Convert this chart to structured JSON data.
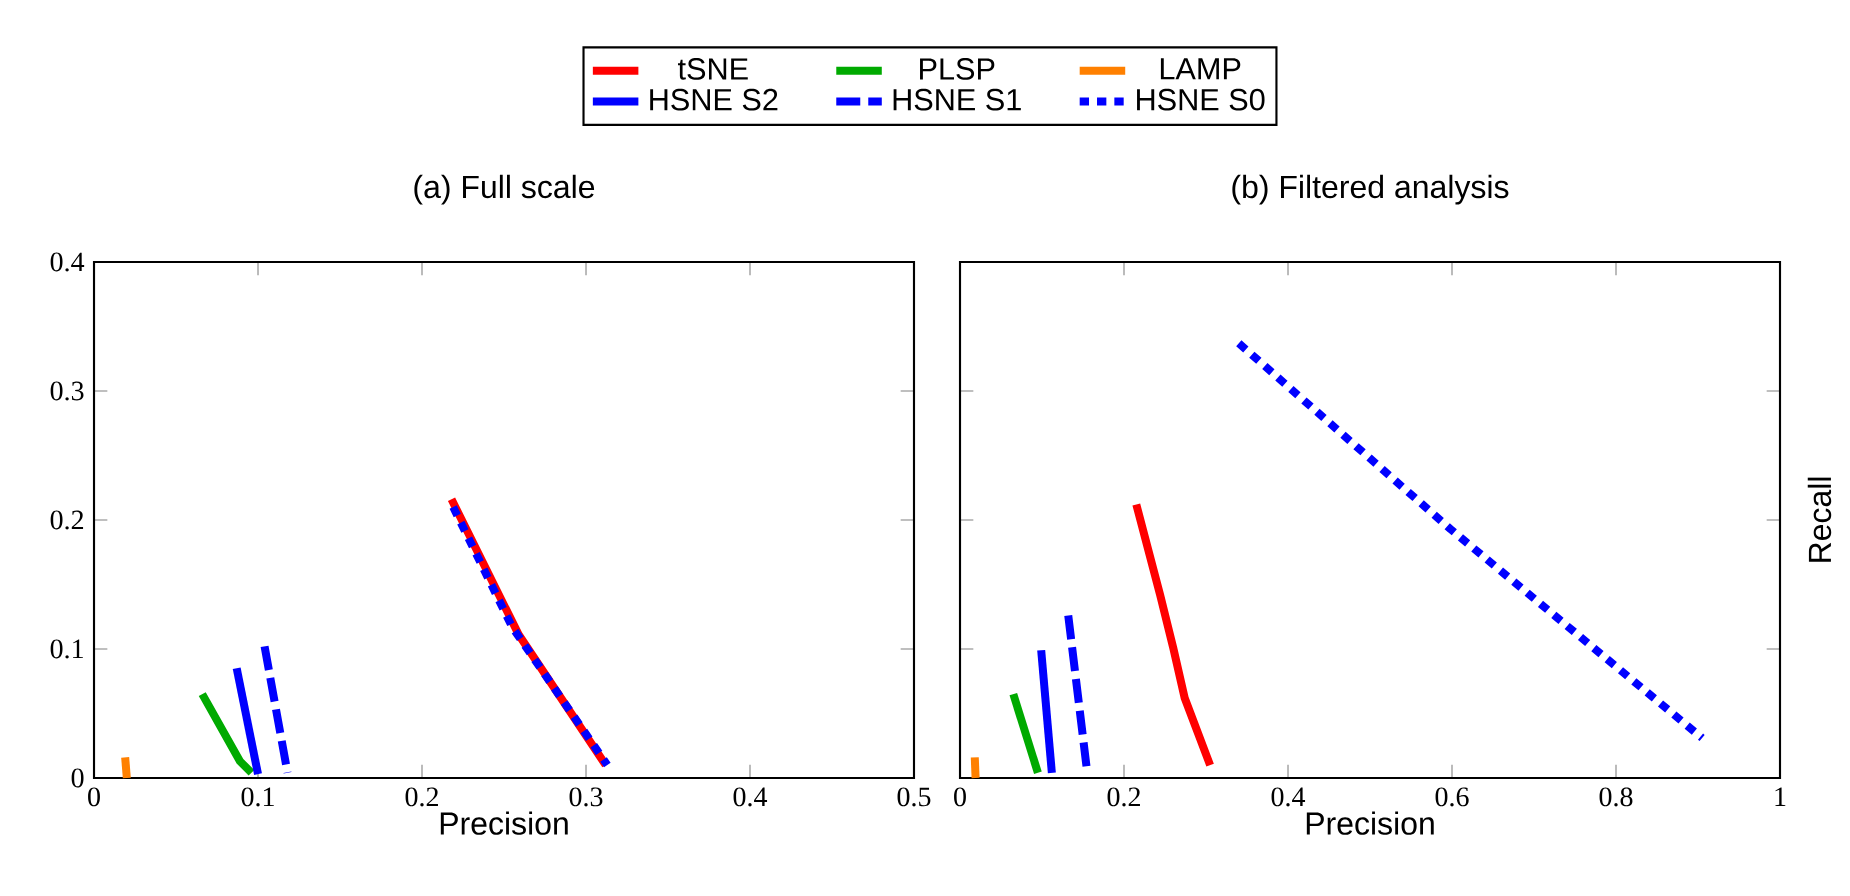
{
  "chart_data": [
    {
      "type": "line",
      "title": "(a) Full scale",
      "xlabel": "Precision",
      "xlim": [
        0,
        0.5
      ],
      "ylim": [
        0,
        0.4
      ],
      "xticks": [
        0,
        0.1,
        0.2,
        0.3,
        0.4,
        0.5
      ],
      "yticks": [
        0,
        0.1,
        0.2,
        0.3,
        0.4
      ],
      "legend": "top",
      "series": [
        {
          "name": "tSNE",
          "color": "#ff0000",
          "line_style": "solid",
          "x": [
            0.218,
            0.259,
            0.312
          ],
          "values": [
            0.216,
            0.111,
            0.01
          ]
        },
        {
          "name": "PLSP",
          "color": "#00aa00",
          "line_style": "solid",
          "x": [
            0.066,
            0.089,
            0.096
          ],
          "values": [
            0.065,
            0.013,
            0.004
          ]
        },
        {
          "name": "LAMP",
          "color": "#ff8000",
          "line_style": "solid",
          "x": [
            0.019,
            0.02
          ],
          "values": [
            0.016,
            0
          ]
        },
        {
          "name": "HSNE S2",
          "color": "#0000ff",
          "line_style": "solid",
          "x": [
            0.087,
            0.1
          ],
          "values": [
            0.085,
            0.003
          ]
        },
        {
          "name": "HSNE S1",
          "color": "#0000ff",
          "line_style": "dashed",
          "x": [
            0.104,
            0.118
          ],
          "values": [
            0.102,
            0.004
          ]
        },
        {
          "name": "HSNE S0",
          "color": "#0000ff",
          "line_style": "dotted",
          "x": [
            0.219,
            0.255,
            0.313
          ],
          "values": [
            0.21,
            0.117,
            0.01
          ]
        }
      ]
    },
    {
      "type": "line",
      "title": "(b) Filtered analysis",
      "xlabel": "Precision",
      "ylabel": "Recall",
      "xlim": [
        0,
        1
      ],
      "ylim": [
        0,
        0.4
      ],
      "xticks": [
        0,
        0.2,
        0.4,
        0.6,
        0.8,
        1
      ],
      "yticks": [
        0,
        0.1,
        0.2,
        0.3,
        0.4
      ],
      "tick_labels": "x",
      "series": [
        {
          "color": "#ff0000",
          "line_style": "solid",
          "x": [
            0.215,
            0.244,
            0.26,
            0.274,
            0.305
          ],
          "values": [
            0.212,
            0.142,
            0.101,
            0.062,
            0.01
          ]
        },
        {
          "color": "#00aa00",
          "line_style": "solid",
          "x": [
            0.065,
            0.095
          ],
          "values": [
            0.065,
            0.004
          ]
        },
        {
          "color": "#ff8000",
          "line_style": "solid",
          "x": [
            0.018,
            0.019
          ],
          "values": [
            0.016,
            0
          ]
        },
        {
          "color": "#0000ff",
          "line_style": "solid",
          "x": [
            0.099,
            0.112
          ],
          "values": [
            0.099,
            0.004
          ]
        },
        {
          "color": "#0000ff",
          "line_style": "dashed",
          "x": [
            0.132,
            0.155
          ],
          "values": [
            0.126,
            0.005
          ]
        },
        {
          "color": "#0000ff",
          "line_style": "dotted",
          "x": [
            0.34,
            0.598,
            0.905
          ],
          "values": [
            0.337,
            0.193,
            0.031
          ]
        }
      ]
    }
  ]
}
